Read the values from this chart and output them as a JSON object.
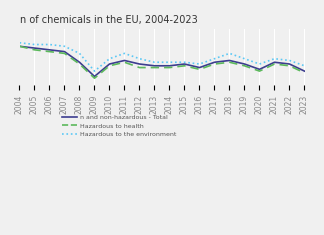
{
  "title": "n of chemicals in the EU, 2004-2023",
  "years": [
    2004,
    2005,
    2006,
    2007,
    2008,
    2009,
    2010,
    2011,
    2012,
    2013,
    2014,
    2015,
    2016,
    2017,
    2018,
    2019,
    2020,
    2021,
    2022,
    2023
  ],
  "total": [
    100,
    99,
    98,
    97,
    91,
    83,
    90,
    92,
    90,
    89,
    89,
    90,
    88,
    91,
    92,
    90,
    87,
    91,
    90,
    86
  ],
  "hazardous_health": [
    100,
    98,
    97,
    96,
    90,
    82,
    89,
    91,
    88,
    88,
    88,
    89,
    87,
    90,
    91,
    89,
    86,
    90,
    89,
    85
  ],
  "hazardous_env": [
    102,
    101,
    101,
    100,
    96,
    86,
    93,
    96,
    93,
    91,
    91,
    91,
    90,
    93,
    96,
    93,
    90,
    93,
    92,
    89
  ],
  "line_colors": {
    "total": "#3d3d8f",
    "hazardous_health": "#5cb85c",
    "hazardous_env": "#5bc8f5"
  },
  "legend_labels": {
    "total": "n and non-hazardous - Total",
    "hazardous_health": "Hazardous to health",
    "hazardous_env": "Hazardous to the environment"
  },
  "bg_color": "#f0f0f0",
  "grid_color": "#ffffff",
  "ylim": [
    78,
    110
  ],
  "xlabel_fontsize": 5.5,
  "title_fontsize": 7
}
